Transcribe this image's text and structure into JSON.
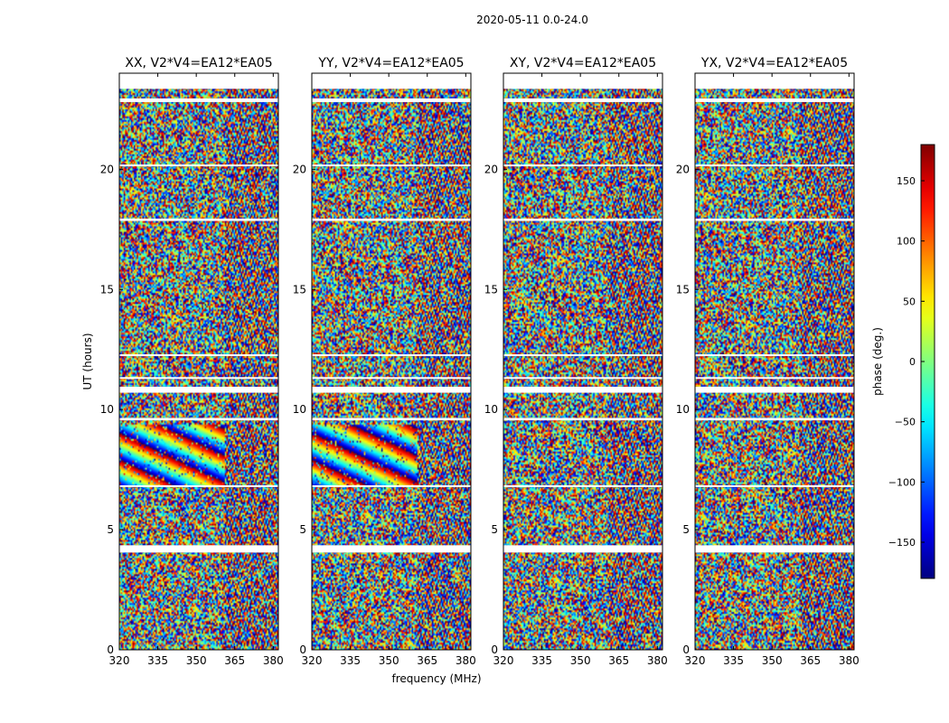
{
  "figure": {
    "suptitle": "2020-05-11 0.0-24.0",
    "ylabel": "UT (hours)",
    "xlabel": "frequency (MHz)",
    "colorbar_label": "phase (deg.)"
  },
  "chart_data": {
    "type": "heatmap",
    "xlim": [
      320,
      382
    ],
    "ylim": [
      0,
      24
    ],
    "x_ticks": [
      320,
      335,
      350,
      365,
      380
    ],
    "y_ticks": [
      0,
      5,
      10,
      15,
      20
    ],
    "colorbar": {
      "range": [
        -180,
        180
      ],
      "ticks": [
        -150,
        -100,
        -50,
        0,
        50,
        100,
        150
      ],
      "colormap": "jet"
    },
    "panels": [
      {
        "title": "XX, V2*V4=EA12*EA05",
        "polarization": "XX"
      },
      {
        "title": "YY, V2*V4=EA12*EA05",
        "polarization": "YY"
      },
      {
        "title": "XY, V2*V4=EA12*EA05",
        "polarization": "XY"
      },
      {
        "title": "YX, V2*V4=EA12*EA05",
        "polarization": "YX"
      }
    ],
    "flagged_gaps_hours": [
      [
        4.05,
        4.35
      ],
      [
        6.8,
        6.85
      ],
      [
        9.55,
        9.65
      ],
      [
        10.7,
        10.95
      ],
      [
        11.3,
        11.35
      ],
      [
        12.25,
        12.3
      ],
      [
        17.85,
        17.95
      ],
      [
        20.15,
        20.2
      ],
      [
        22.8,
        22.95
      ],
      [
        23.35,
        24.0
      ]
    ],
    "coherent_phase_region": {
      "panels": [
        "XX",
        "YY"
      ],
      "hours": [
        6.8,
        9.4
      ],
      "freq_mhz": [
        320,
        361
      ]
    }
  }
}
